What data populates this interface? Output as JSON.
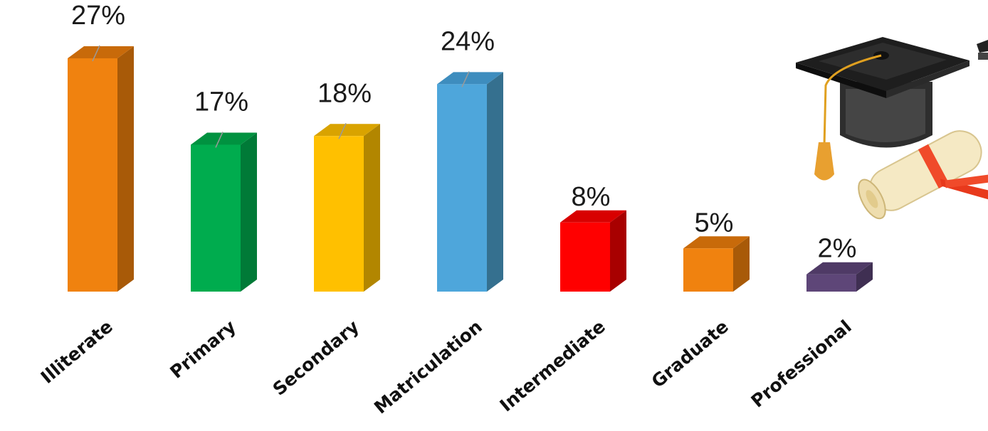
{
  "chart_data": {
    "type": "bar",
    "categories": [
      "Illiterate",
      "Primary",
      "Secondary",
      "Matriculation",
      "Intermediate",
      "Graduate",
      "Professional"
    ],
    "values": [
      27,
      17,
      18,
      24,
      8,
      5,
      2
    ],
    "value_labels": [
      "27%",
      "17%",
      "18%",
      "24%",
      "8%",
      "5%",
      "2%"
    ],
    "colors": [
      "#F0820F",
      "#00AC4E",
      "#FFC000",
      "#4EA6DB",
      "#FF0000",
      "#F0820F",
      "#5E4678"
    ],
    "side_colors": [
      "#A85A08",
      "#007A37",
      "#B28600",
      "#35708F",
      "#A80000",
      "#A85A08",
      "#3F2F52"
    ],
    "top_colors": [
      "#C86A0A",
      "#009240",
      "#D9A300",
      "#3E8DBE",
      "#D80000",
      "#C86A0A",
      "#4F3A66"
    ],
    "style": "3d-column",
    "grid": false,
    "legend": "none"
  },
  "decoration": {
    "icon": "graduation-cap-diploma-icon"
  }
}
